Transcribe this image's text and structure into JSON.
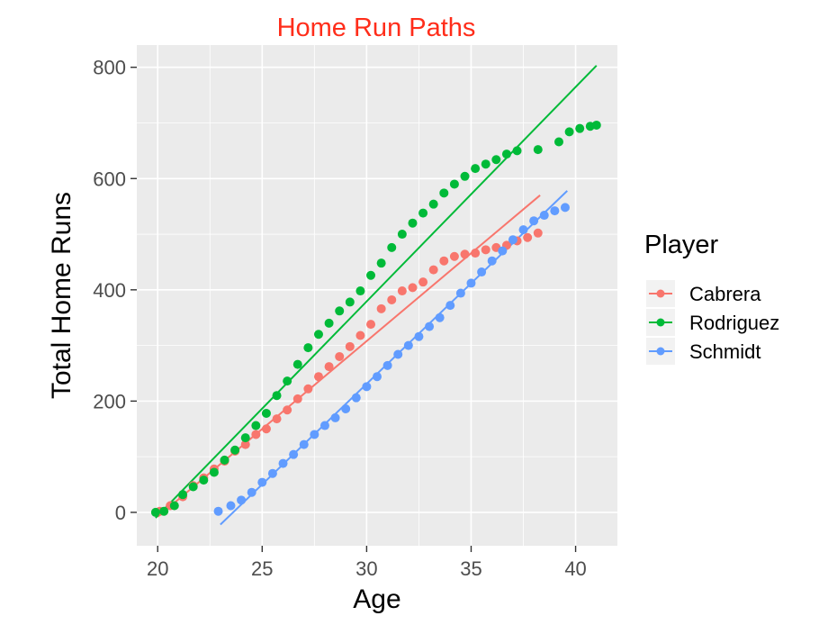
{
  "chart_data": {
    "type": "scatter",
    "title": "Home Run Paths",
    "xlabel": "Age",
    "ylabel": "Total Home Runs",
    "xlim": [
      19,
      42
    ],
    "ylim": [
      -60,
      840
    ],
    "x_ticks": [
      20,
      25,
      30,
      35,
      40
    ],
    "y_ticks": [
      0,
      200,
      400,
      600,
      800
    ],
    "grid": true,
    "legend_title": "Player",
    "legend_position": "right",
    "series": [
      {
        "name": "Cabrera",
        "color": "#F8766D",
        "points": [
          [
            20.1,
            2
          ],
          [
            20.6,
            12
          ],
          [
            21.2,
            28
          ],
          [
            21.7,
            48
          ],
          [
            22.2,
            62
          ],
          [
            22.7,
            78
          ],
          [
            23.2,
            92
          ],
          [
            23.7,
            110
          ],
          [
            24.2,
            122
          ],
          [
            24.7,
            140
          ],
          [
            25.2,
            150
          ],
          [
            25.7,
            168
          ],
          [
            26.2,
            184
          ],
          [
            26.7,
            204
          ],
          [
            27.2,
            222
          ],
          [
            27.7,
            244
          ],
          [
            28.2,
            262
          ],
          [
            28.7,
            280
          ],
          [
            29.2,
            298
          ],
          [
            29.7,
            318
          ],
          [
            30.2,
            338
          ],
          [
            30.7,
            366
          ],
          [
            31.2,
            382
          ],
          [
            31.7,
            398
          ],
          [
            32.2,
            404
          ],
          [
            32.7,
            414
          ],
          [
            33.2,
            436
          ],
          [
            33.7,
            452
          ],
          [
            34.2,
            460
          ],
          [
            34.7,
            464
          ],
          [
            35.2,
            466
          ],
          [
            35.7,
            472
          ],
          [
            36.2,
            476
          ],
          [
            36.7,
            480
          ],
          [
            37.2,
            488
          ],
          [
            37.7,
            494
          ],
          [
            38.2,
            502
          ]
        ],
        "trend": [
          [
            20.0,
            -8
          ],
          [
            38.3,
            570
          ]
        ]
      },
      {
        "name": "Rodriguez",
        "color": "#00BA38",
        "points": [
          [
            19.9,
            0
          ],
          [
            20.3,
            2
          ],
          [
            20.8,
            12
          ],
          [
            21.2,
            32
          ],
          [
            21.7,
            46
          ],
          [
            22.2,
            58
          ],
          [
            22.7,
            72
          ],
          [
            23.2,
            94
          ],
          [
            23.7,
            112
          ],
          [
            24.2,
            134
          ],
          [
            24.7,
            156
          ],
          [
            25.2,
            178
          ],
          [
            25.7,
            210
          ],
          [
            26.2,
            236
          ],
          [
            26.7,
            266
          ],
          [
            27.2,
            296
          ],
          [
            27.7,
            320
          ],
          [
            28.2,
            340
          ],
          [
            28.7,
            362
          ],
          [
            29.2,
            378
          ],
          [
            29.7,
            398
          ],
          [
            30.2,
            426
          ],
          [
            30.7,
            448
          ],
          [
            31.2,
            476
          ],
          [
            31.7,
            500
          ],
          [
            32.2,
            520
          ],
          [
            32.7,
            538
          ],
          [
            33.2,
            554
          ],
          [
            33.7,
            574
          ],
          [
            34.2,
            590
          ],
          [
            34.7,
            604
          ],
          [
            35.2,
            618
          ],
          [
            35.7,
            626
          ],
          [
            36.2,
            634
          ],
          [
            36.7,
            644
          ],
          [
            37.2,
            650
          ],
          [
            38.2,
            652
          ],
          [
            39.2,
            666
          ],
          [
            39.7,
            684
          ],
          [
            40.2,
            690
          ],
          [
            40.7,
            694
          ],
          [
            41.0,
            696
          ]
        ],
        "trend": [
          [
            19.9,
            -10
          ],
          [
            41.0,
            803
          ]
        ]
      },
      {
        "name": "Schmidt",
        "color": "#619CFF",
        "points": [
          [
            22.9,
            2
          ],
          [
            23.5,
            12
          ],
          [
            24.0,
            22
          ],
          [
            24.5,
            36
          ],
          [
            25.0,
            54
          ],
          [
            25.5,
            70
          ],
          [
            26.0,
            88
          ],
          [
            26.5,
            104
          ],
          [
            27.0,
            122
          ],
          [
            27.5,
            140
          ],
          [
            28.0,
            156
          ],
          [
            28.5,
            170
          ],
          [
            29.0,
            186
          ],
          [
            29.5,
            206
          ],
          [
            30.0,
            226
          ],
          [
            30.5,
            244
          ],
          [
            31.0,
            264
          ],
          [
            31.5,
            284
          ],
          [
            32.0,
            300
          ],
          [
            32.5,
            316
          ],
          [
            33.0,
            334
          ],
          [
            33.5,
            350
          ],
          [
            34.0,
            372
          ],
          [
            34.5,
            394
          ],
          [
            35.0,
            412
          ],
          [
            35.5,
            432
          ],
          [
            36.0,
            452
          ],
          [
            36.5,
            470
          ],
          [
            37.0,
            490
          ],
          [
            37.5,
            508
          ],
          [
            38.0,
            524
          ],
          [
            38.5,
            534
          ],
          [
            39.0,
            542
          ],
          [
            39.5,
            548
          ]
        ],
        "trend": [
          [
            23.0,
            -22
          ],
          [
            39.6,
            578
          ]
        ]
      }
    ]
  }
}
